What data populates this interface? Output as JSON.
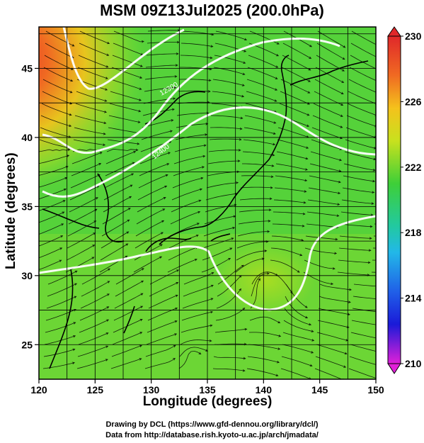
{
  "title": "MSM 09Z13Jul2025 (200.0hPa)",
  "map": {
    "xlabel": "Longitude (degrees)",
    "ylabel": "Latitude  (degrees)",
    "lon_range": [
      120,
      150
    ],
    "lat_range": [
      22.5,
      48
    ],
    "lon_ticks": [
      "120",
      "125",
      "130",
      "135",
      "140",
      "145",
      "150"
    ],
    "lat_ticks": [
      "25",
      "30",
      "35",
      "40",
      "45"
    ],
    "contour_labels": [
      "12300",
      "12400"
    ]
  },
  "colorbar": {
    "min": 210,
    "max": 230,
    "labels": [
      "230",
      "226",
      "222",
      "218",
      "214",
      "210"
    ]
  },
  "credits": [
    "Drawing by DCL (https://www.gfd-dennou.org/library/dcl/)",
    "Data from http://database.rish.kyoto-u.ac.jp/arch/jmadata/"
  ],
  "colors": {
    "field_main": "#55d23a",
    "field_warm": "#e8542a",
    "contour": "#ffffff",
    "streamline": "#000000"
  }
}
